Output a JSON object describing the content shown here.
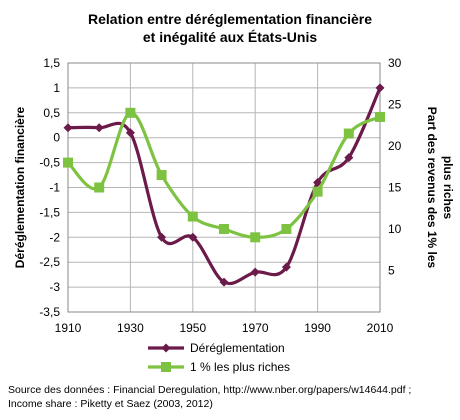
{
  "chart_data": {
    "type": "line",
    "title": [
      "Relation entre déréglementation financière",
      "et inégalité aux États-Unis"
    ],
    "x": [
      1910,
      1920,
      1930,
      1940,
      1950,
      1960,
      1970,
      1980,
      1990,
      2000,
      2010
    ],
    "x_ticks": [
      "1910",
      "1930",
      "1950",
      "1970",
      "1990",
      "2010"
    ],
    "xlim": [
      1910,
      2010
    ],
    "y_left": {
      "label": "Déréglementation financière",
      "ylim": [
        -3.5,
        1.5
      ],
      "ticks": [
        "1,5",
        "1",
        "0,5",
        "0",
        "-0,5",
        "-1",
        "-1,5",
        "-2",
        "-2,5",
        "-3",
        "-3,5"
      ]
    },
    "y_right": {
      "label": [
        "Part des revenus des 1% les",
        "plus riches"
      ],
      "ylim": [
        0,
        30
      ],
      "ticks": [
        "30",
        "25",
        "20",
        "15",
        "10",
        "5"
      ]
    },
    "grid": true,
    "legend": "bottom",
    "series": [
      {
        "name": "Déréglementation",
        "axis": "left",
        "color": "#6b1a4a",
        "marker": "diamond",
        "values": [
          0.2,
          0.2,
          0.1,
          -2.0,
          -2.0,
          -2.9,
          -2.7,
          -2.6,
          -0.9,
          -0.4,
          1.0
        ]
      },
      {
        "name": "1 % les plus riches",
        "axis": "right",
        "color": "#7ec242",
        "marker": "square",
        "values": [
          18,
          15,
          24,
          16.5,
          11.5,
          10,
          9,
          10,
          14.5,
          21.5,
          23.5
        ]
      }
    ]
  },
  "source_lines": [
    "Source des données : Financial Deregulation, http://www.nber.org/papers/w14644.pdf ;",
    "Income share : Piketty et Saez (2003, 2012)"
  ]
}
